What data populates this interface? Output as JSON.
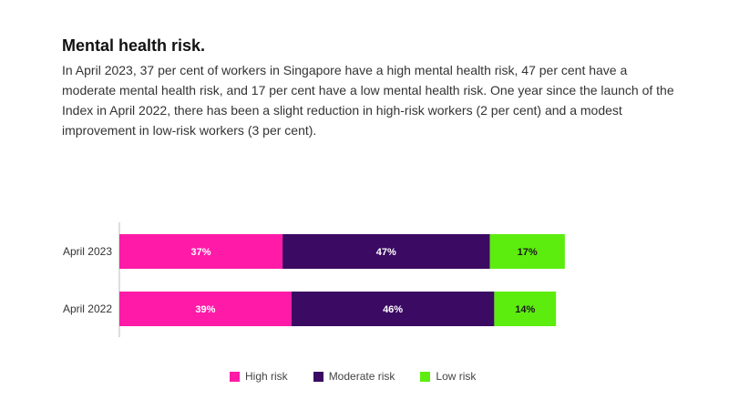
{
  "header": {
    "title": "Mental health risk.",
    "description": "In April 2023, 37 per cent of workers in Singapore have a high mental health risk, 47 per cent have a moderate mental health risk, and 17 per cent have a low mental health risk. One year since the launch of the Index in April 2022, there has been a slight reduction in high-risk workers (2 per cent) and a modest improvement in low-risk workers (3 per cent)."
  },
  "chart_data": {
    "type": "bar",
    "orientation": "horizontal",
    "stacked": true,
    "categories": [
      "April 2023",
      "April 2022"
    ],
    "series": [
      {
        "name": "High risk",
        "values": [
          37,
          39
        ],
        "labels": [
          "37%",
          "39%"
        ],
        "color": "#ff1aa8",
        "label_color": "#ffffff"
      },
      {
        "name": "Moderate risk",
        "values": [
          47,
          46
        ],
        "labels": [
          "47%",
          "46%"
        ],
        "color": "#3b0a63",
        "label_color": "#ffffff"
      },
      {
        "name": "Low risk",
        "values": [
          17,
          14
        ],
        "labels": [
          "17%",
          "14%"
        ],
        "color": "#5ced0e",
        "label_color": "#1a1a1a"
      }
    ],
    "xlim": [
      0,
      100
    ],
    "grid": false,
    "legend_position": "bottom"
  }
}
